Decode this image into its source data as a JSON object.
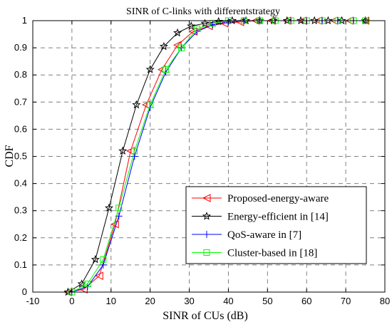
{
  "chart_data": {
    "type": "line",
    "title": "SINR of C-links with differentstrategy",
    "xlabel": "SINR of CUs  (dB)",
    "ylabel": "CDF",
    "xlim": [
      -10,
      80
    ],
    "ylim": [
      0,
      1
    ],
    "xticks": [
      "-10",
      "0",
      "10",
      "20",
      "30",
      "40",
      "50",
      "60",
      "70",
      "80"
    ],
    "yticks": [
      "0",
      "0.1",
      "0.2",
      "0.3",
      "0.4",
      "0.5",
      "0.6",
      "0.7",
      "0.8",
      "0.9",
      "1"
    ],
    "grid": true,
    "legend_position": "lower-right",
    "series": [
      {
        "name": "Proposed-energy-aware",
        "color": "#ff0000",
        "marker": "triangle-left",
        "x": [
          -1,
          3,
          7,
          11,
          15,
          19,
          23,
          27,
          31,
          35,
          39,
          43,
          47,
          51,
          55,
          59,
          63,
          67,
          71,
          75
        ],
        "y": [
          0.0,
          0.01,
          0.06,
          0.25,
          0.52,
          0.69,
          0.82,
          0.91,
          0.96,
          0.98,
          0.99,
          0.995,
          1.0,
          1.0,
          1.0,
          1.0,
          1.0,
          1.0,
          1.0,
          1.0
        ]
      },
      {
        "name": "Energy-efficient in [14]",
        "color": "#000000",
        "marker": "star",
        "x": [
          -1,
          2.5,
          6,
          9.5,
          13,
          16.5,
          20,
          23.5,
          27,
          30.5,
          34,
          37.5,
          41,
          44.5,
          48,
          51.5,
          55,
          58.5,
          62,
          65.5,
          69,
          75
        ],
        "y": [
          0.0,
          0.03,
          0.12,
          0.31,
          0.52,
          0.69,
          0.82,
          0.905,
          0.955,
          0.98,
          0.99,
          0.997,
          1.0,
          1.0,
          1.0,
          1.0,
          1.0,
          1.0,
          1.0,
          1.0,
          1.0,
          1.0
        ]
      },
      {
        "name": "QoS-aware in [7]",
        "color": "#0000ff",
        "marker": "plus",
        "x": [
          0,
          4,
          8,
          12,
          16,
          20,
          24,
          28,
          32,
          36,
          40,
          44,
          48,
          52,
          56,
          60,
          64,
          68,
          72,
          75
        ],
        "y": [
          0.0,
          0.02,
          0.1,
          0.28,
          0.5,
          0.68,
          0.81,
          0.9,
          0.96,
          0.985,
          0.995,
          1.0,
          1.0,
          1.0,
          1.0,
          1.0,
          1.0,
          1.0,
          1.0,
          1.0
        ]
      },
      {
        "name": "Cluster-based in [18]",
        "color": "#00ff00",
        "marker": "square",
        "x": [
          0,
          4,
          8,
          12,
          16,
          20,
          24,
          28,
          32,
          36,
          40,
          44,
          48,
          52,
          56,
          60,
          64,
          68,
          72,
          75
        ],
        "y": [
          0.0,
          0.03,
          0.12,
          0.31,
          0.52,
          0.69,
          0.82,
          0.9,
          0.97,
          0.99,
          1.0,
          1.0,
          1.0,
          1.0,
          1.0,
          1.0,
          1.0,
          1.0,
          1.0,
          1.0
        ]
      }
    ]
  }
}
